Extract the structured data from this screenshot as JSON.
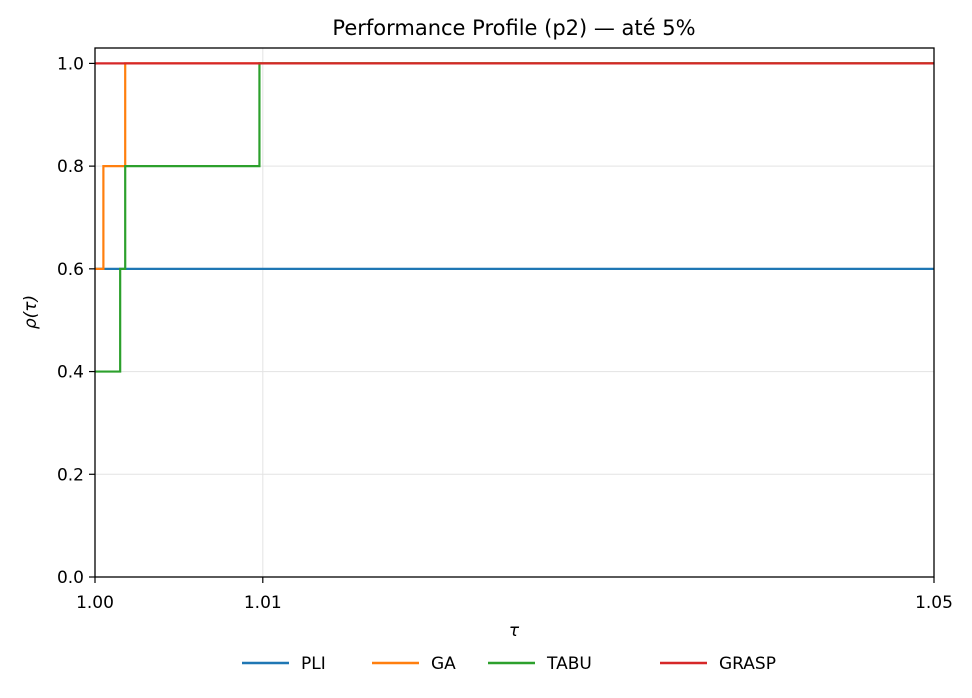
{
  "chart_data": {
    "type": "line",
    "step": "post",
    "title": "Performance Profile (p2) — até 5%",
    "xlabel": "τ",
    "ylabel": "ρ(τ)",
    "xlim": [
      1.0,
      1.05
    ],
    "ylim": [
      0.0,
      1.03
    ],
    "xticks": [
      1.0,
      1.01,
      1.05
    ],
    "xtick_labels": [
      "1.00",
      "1.01",
      "1.05"
    ],
    "yticks": [
      0.0,
      0.2,
      0.4,
      0.6,
      0.8,
      1.0
    ],
    "ytick_labels": [
      "0.0",
      "0.2",
      "0.4",
      "0.6",
      "0.8",
      "1.0"
    ],
    "grid": true,
    "legend_position": "bottom-center",
    "series": [
      {
        "name": "PLI",
        "color": "#1f77b4",
        "x": [
          1.0,
          1.05
        ],
        "y": [
          0.6,
          0.6
        ]
      },
      {
        "name": "GA",
        "color": "#ff7f0e",
        "x": [
          1.0,
          1.0005,
          1.0018,
          1.05
        ],
        "y": [
          0.6,
          0.8,
          1.0,
          1.0
        ]
      },
      {
        "name": "TABU",
        "color": "#2ca02c",
        "x": [
          1.0,
          1.0015,
          1.0018,
          1.0098,
          1.05
        ],
        "y": [
          0.4,
          0.6,
          0.8,
          1.0,
          1.0
        ]
      },
      {
        "name": "GRASP",
        "color": "#d62728",
        "x": [
          1.0,
          1.05
        ],
        "y": [
          1.0,
          1.0
        ]
      }
    ]
  }
}
